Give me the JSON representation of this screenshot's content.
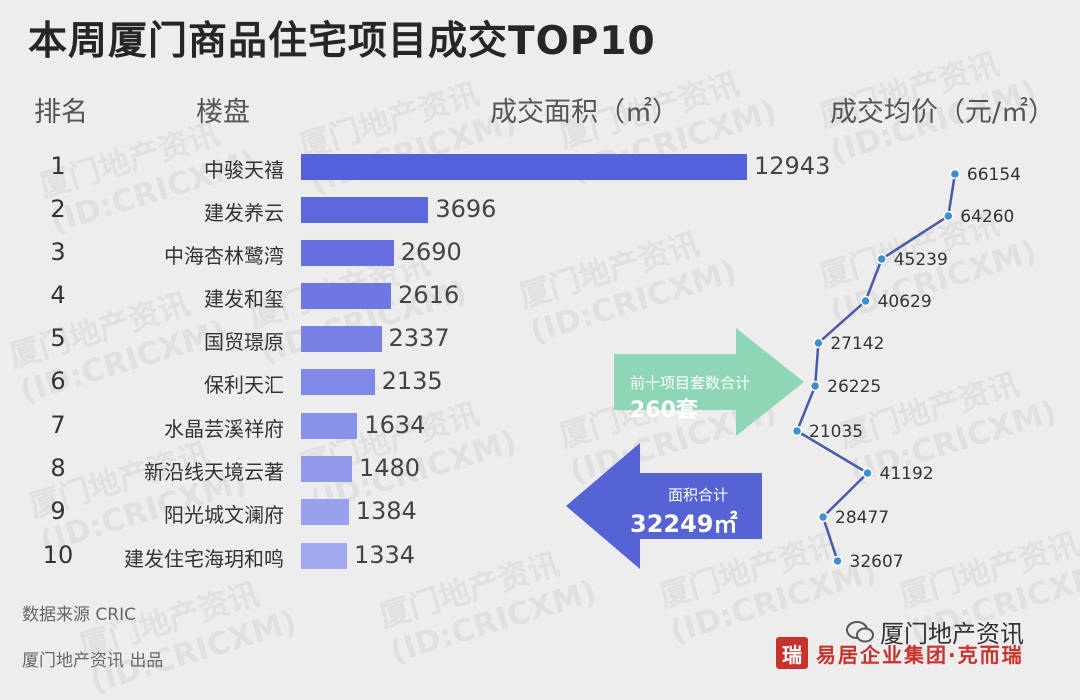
{
  "title": "本周厦门商品住宅项目成交TOP10",
  "headers": {
    "rank": "排名",
    "project": "楼盘",
    "area": "成交面积（㎡）",
    "price": "成交均价（元/㎡）"
  },
  "watermark": {
    "line1": "厦门地产资讯",
    "line2": "(ID:CRICXM)"
  },
  "chart_data": {
    "type": "bar",
    "title": "本周厦门商品住宅项目成交TOP10",
    "ranks": [
      "1",
      "2",
      "3",
      "4",
      "5",
      "6",
      "7",
      "8",
      "9",
      "10"
    ],
    "categories": [
      "中骏天禧",
      "建发养云",
      "中海杏林鹭湾",
      "建发和玺",
      "国贸璟原",
      "保利天汇",
      "水晶芸溪祥府",
      "新沿线天境云著",
      "阳光城文澜府",
      "建发住宅海玥和鸣"
    ],
    "series": [
      {
        "name": "成交面积（㎡）",
        "values": [
          12943,
          3696,
          2690,
          2616,
          2337,
          2135,
          1634,
          1480,
          1384,
          1334
        ]
      },
      {
        "name": "成交均价（元/㎡）",
        "values": [
          66154,
          64260,
          45239,
          40629,
          27142,
          26225,
          21035,
          41192,
          28477,
          32607
        ]
      }
    ],
    "annotations": [
      {
        "label": "前十项目套数合计",
        "value": "260套"
      },
      {
        "label": "面积合计",
        "value": "32249㎡"
      }
    ]
  },
  "colors": {
    "bar_top": "#5560dc",
    "bar_bottom": "#a3a9ee",
    "line": "#4a5aa8",
    "marker": "#3d8fd1",
    "arrow_green": "#8ed6b4",
    "arrow_blue": "#5663d4",
    "seal": "#c8322c"
  },
  "footer": {
    "source": "数据来源 CRIC",
    "publisher": "厦门地产资讯  出品",
    "wechat": "厦门地产资讯",
    "brand": "易居企业集团·克而瑞",
    "seal_char": "瑞"
  }
}
